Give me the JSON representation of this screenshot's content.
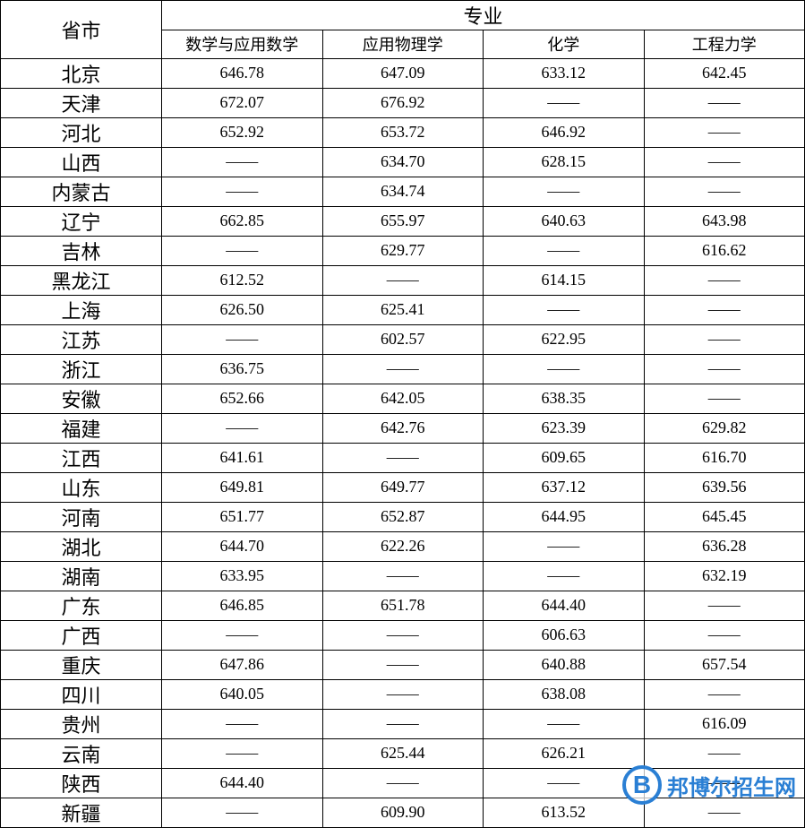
{
  "table": {
    "header_province": "省市",
    "header_major": "专业",
    "columns": [
      "数学与应用数学",
      "应用物理学",
      "化学",
      "工程力学"
    ],
    "province_col_width": 180,
    "data_col_width": 180,
    "font_size_header": 22,
    "font_size_sub": 18,
    "font_size_province": 22,
    "font_size_data": 18,
    "border_color": "#000000",
    "background_color": "#ffffff",
    "dash": "——",
    "rows": [
      {
        "province": "北京",
        "values": [
          "646.78",
          "647.09",
          "633.12",
          "642.45"
        ]
      },
      {
        "province": "天津",
        "values": [
          "672.07",
          "676.92",
          "——",
          "——"
        ]
      },
      {
        "province": "河北",
        "values": [
          "652.92",
          "653.72",
          "646.92",
          "——"
        ]
      },
      {
        "province": "山西",
        "values": [
          "——",
          "634.70",
          "628.15",
          "——"
        ]
      },
      {
        "province": "内蒙古",
        "values": [
          "——",
          "634.74",
          "——",
          "——"
        ]
      },
      {
        "province": "辽宁",
        "values": [
          "662.85",
          "655.97",
          "640.63",
          "643.98"
        ]
      },
      {
        "province": "吉林",
        "values": [
          "——",
          "629.77",
          "——",
          "616.62"
        ]
      },
      {
        "province": "黑龙江",
        "values": [
          "612.52",
          "——",
          "614.15",
          "——"
        ]
      },
      {
        "province": "上海",
        "values": [
          "626.50",
          "625.41",
          "——",
          "——"
        ]
      },
      {
        "province": "江苏",
        "values": [
          "——",
          "602.57",
          "622.95",
          "——"
        ]
      },
      {
        "province": "浙江",
        "values": [
          "636.75",
          "——",
          "——",
          "——"
        ]
      },
      {
        "province": "安徽",
        "values": [
          "652.66",
          "642.05",
          "638.35",
          "——"
        ]
      },
      {
        "province": "福建",
        "values": [
          "——",
          "642.76",
          "623.39",
          "629.82"
        ]
      },
      {
        "province": "江西",
        "values": [
          "641.61",
          "——",
          "609.65",
          "616.70"
        ]
      },
      {
        "province": "山东",
        "values": [
          "649.81",
          "649.77",
          "637.12",
          "639.56"
        ]
      },
      {
        "province": "河南",
        "values": [
          "651.77",
          "652.87",
          "644.95",
          "645.45"
        ]
      },
      {
        "province": "湖北",
        "values": [
          "644.70",
          "622.26",
          "——",
          "636.28"
        ]
      },
      {
        "province": "湖南",
        "values": [
          "633.95",
          "——",
          "——",
          "632.19"
        ]
      },
      {
        "province": "广东",
        "values": [
          "646.85",
          "651.78",
          "644.40",
          "——"
        ]
      },
      {
        "province": "广西",
        "values": [
          "——",
          "——",
          "606.63",
          "——"
        ]
      },
      {
        "province": "重庆",
        "values": [
          "647.86",
          "——",
          "640.88",
          "657.54"
        ]
      },
      {
        "province": "四川",
        "values": [
          "640.05",
          "——",
          "638.08",
          "——"
        ]
      },
      {
        "province": "贵州",
        "values": [
          "——",
          "——",
          "——",
          "616.09"
        ]
      },
      {
        "province": "云南",
        "values": [
          "——",
          "625.44",
          "626.21",
          "——"
        ]
      },
      {
        "province": "陕西",
        "values": [
          "644.40",
          "——",
          "——",
          "——"
        ]
      },
      {
        "province": "新疆",
        "values": [
          "——",
          "609.90",
          "613.52",
          "——"
        ]
      }
    ]
  },
  "watermark": {
    "logo_letter": "B",
    "text": "邦博尔招生网",
    "color": "#2a7fd4"
  }
}
